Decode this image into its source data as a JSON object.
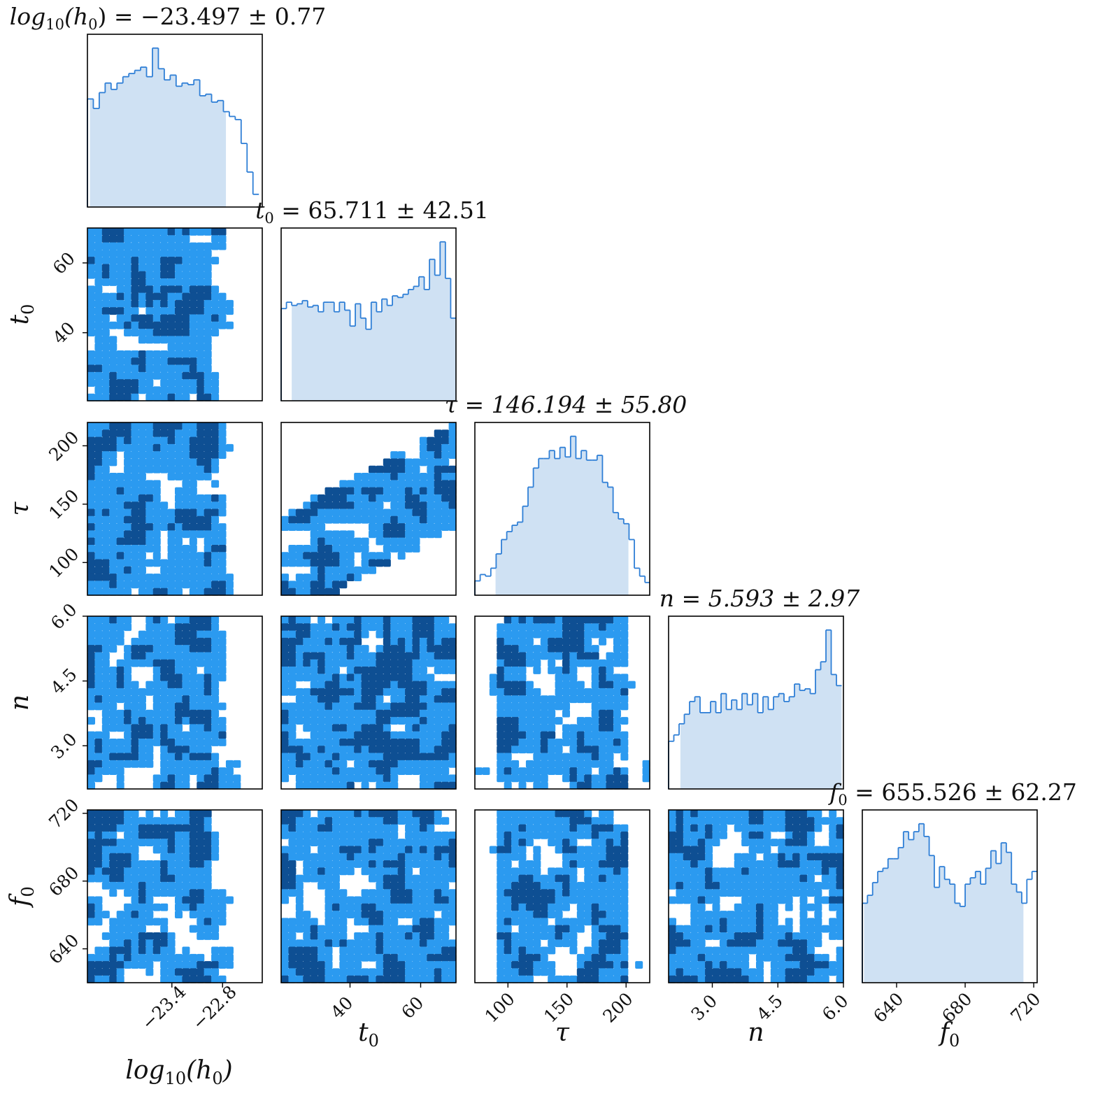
{
  "chart_data": {
    "type": "corner",
    "colors": {
      "hist_line": "#2f7fd6",
      "hist_fill": "#cfe1f3",
      "contour_outer": "#2b9af0",
      "contour_inner": "#0e4f93",
      "contour_edge": "#123a6b"
    },
    "params": [
      {
        "key": "log10_h0",
        "axis_label": "log10(h0)",
        "title": "log10(h0) = −23.497 ± 0.77",
        "range": [
          -24.4,
          -22.33
        ],
        "ticks": [
          -23.4,
          -22.8
        ],
        "tick_labels": [
          "−23.4",
          "−22.8"
        ],
        "hist_bins": [
          -24.4,
          -24.33,
          -24.26,
          -24.19,
          -24.12,
          -24.05,
          -23.98,
          -23.91,
          -23.84,
          -23.77,
          -23.7,
          -23.63,
          -23.56,
          -23.49,
          -23.42,
          -23.35,
          -23.28,
          -23.21,
          -23.14,
          -23.07,
          -23.0,
          -22.93,
          -22.86,
          -22.79,
          -22.72,
          -22.65,
          -22.58,
          -22.51,
          -22.44
        ],
        "hist_counts": [
          0.68,
          0.62,
          0.72,
          0.78,
          0.74,
          0.78,
          0.82,
          0.84,
          0.86,
          0.88,
          0.82,
          1.0,
          0.87,
          0.8,
          0.83,
          0.76,
          0.78,
          0.77,
          0.8,
          0.7,
          0.71,
          0.66,
          0.67,
          0.6,
          0.57,
          0.55,
          0.4,
          0.22,
          0.08
        ],
        "credible_interval": [
          -24.37,
          -22.76
        ]
      },
      {
        "key": "t0",
        "axis_label": "t0",
        "title": "t0 = 65.711 ± 42.51",
        "range": [
          20.5,
          70.0
        ],
        "ticks": [
          40,
          60
        ],
        "tick_labels": [
          "40",
          "60"
        ],
        "hist_bins": [
          20.5,
          22.0,
          23.5,
          25.0,
          26.5,
          28.0,
          29.5,
          31.0,
          32.5,
          34.0,
          35.5,
          37.0,
          38.5,
          40.0,
          41.5,
          43.0,
          44.5,
          46.0,
          47.5,
          49.0,
          50.5,
          52.0,
          53.5,
          55.0,
          56.5,
          58.0,
          59.5,
          61.0,
          62.5,
          64.0,
          65.5,
          67.0,
          68.5
        ],
        "hist_counts": [
          0.58,
          0.62,
          0.6,
          0.61,
          0.63,
          0.59,
          0.6,
          0.56,
          0.62,
          0.62,
          0.56,
          0.62,
          0.57,
          0.47,
          0.61,
          0.52,
          0.45,
          0.62,
          0.56,
          0.64,
          0.6,
          0.66,
          0.65,
          0.67,
          0.7,
          0.72,
          0.78,
          0.7,
          0.89,
          0.79,
          1.0,
          0.77,
          0.52
        ],
        "credible_interval": [
          23.5,
          70.0
        ]
      },
      {
        "key": "tau",
        "axis_label": "τ",
        "title": "τ = 146.194 ± 55.80",
        "range": [
          72,
          220
        ],
        "ticks": [
          100,
          150,
          200
        ],
        "tick_labels": [
          "100",
          "150",
          "200"
        ],
        "hist_bins": [
          72,
          76.5,
          81,
          85.5,
          90,
          94.5,
          99,
          103.5,
          108,
          112.5,
          117,
          121.5,
          126,
          130.5,
          135,
          139.5,
          144,
          148.5,
          153,
          157.5,
          162,
          166.5,
          171,
          175.5,
          180,
          184.5,
          189,
          193.5,
          198,
          202.5,
          207,
          211.5,
          216
        ],
        "hist_counts": [
          0.09,
          0.13,
          0.12,
          0.17,
          0.26,
          0.35,
          0.4,
          0.44,
          0.46,
          0.56,
          0.68,
          0.8,
          0.86,
          0.86,
          0.91,
          0.86,
          0.93,
          0.87,
          1.0,
          0.86,
          0.91,
          0.85,
          0.85,
          0.88,
          0.71,
          0.68,
          0.52,
          0.48,
          0.45,
          0.35,
          0.17,
          0.12,
          0.08
        ],
        "credible_interval": [
          89.5,
          202.0
        ]
      },
      {
        "key": "n",
        "axis_label": "n",
        "title": "n = 5.593 ± 2.97",
        "range": [
          2.0,
          6.0
        ],
        "ticks": [
          3.0,
          4.5,
          6.0
        ],
        "tick_labels": [
          "3.0",
          "4.5",
          "6.0"
        ],
        "hist_bins": [
          2.0,
          2.12,
          2.24,
          2.36,
          2.48,
          2.6,
          2.72,
          2.84,
          2.96,
          3.08,
          3.2,
          3.32,
          3.44,
          3.56,
          3.68,
          3.8,
          3.92,
          4.04,
          4.16,
          4.28,
          4.4,
          4.52,
          4.64,
          4.76,
          4.88,
          5.0,
          5.12,
          5.24,
          5.36,
          5.48,
          5.6,
          5.72,
          5.84
        ],
        "hist_counts": [
          0.3,
          0.34,
          0.41,
          0.47,
          0.55,
          0.58,
          0.48,
          0.48,
          0.55,
          0.48,
          0.6,
          0.5,
          0.56,
          0.5,
          0.6,
          0.53,
          0.6,
          0.48,
          0.58,
          0.5,
          0.58,
          0.6,
          0.55,
          0.58,
          0.66,
          0.62,
          0.63,
          0.6,
          0.75,
          0.8,
          1.0,
          0.72,
          0.65
        ],
        "credible_interval": [
          2.27,
          6.0
        ]
      },
      {
        "key": "f0",
        "axis_label": "f0",
        "title": "f0 = 655.526 ± 62.27",
        "range": [
          620,
          722
        ],
        "ticks": [
          640,
          680,
          720
        ],
        "tick_labels": [
          "640",
          "680",
          "720"
        ],
        "hist_bins": [
          620,
          623,
          626,
          629,
          632,
          635,
          638,
          641,
          644,
          647,
          650,
          653,
          656,
          659,
          662,
          665,
          668,
          671,
          674,
          677,
          680,
          683,
          686,
          689,
          692,
          695,
          698,
          701,
          704,
          707,
          710,
          713,
          716,
          719
        ],
        "hist_counts": [
          0.5,
          0.55,
          0.63,
          0.7,
          0.72,
          0.78,
          0.78,
          0.85,
          0.95,
          0.9,
          0.95,
          1.0,
          0.92,
          0.8,
          0.6,
          0.73,
          0.65,
          0.62,
          0.5,
          0.48,
          0.62,
          0.66,
          0.7,
          0.62,
          0.72,
          0.83,
          0.75,
          0.88,
          0.82,
          0.62,
          0.57,
          0.5,
          0.65,
          0.7
        ],
        "credible_interval": [
          621,
          714
        ]
      }
    ],
    "contour_levels": [
      "outer",
      "inner"
    ],
    "pairs": [
      {
        "x": "log10_h0",
        "y": "t0"
      },
      {
        "x": "log10_h0",
        "y": "tau"
      },
      {
        "x": "t0",
        "y": "tau",
        "correlation": "positive"
      },
      {
        "x": "log10_h0",
        "y": "n"
      },
      {
        "x": "t0",
        "y": "n"
      },
      {
        "x": "tau",
        "y": "n"
      },
      {
        "x": "log10_h0",
        "y": "f0"
      },
      {
        "x": "t0",
        "y": "f0"
      },
      {
        "x": "tau",
        "y": "f0"
      },
      {
        "x": "n",
        "y": "f0"
      }
    ]
  }
}
